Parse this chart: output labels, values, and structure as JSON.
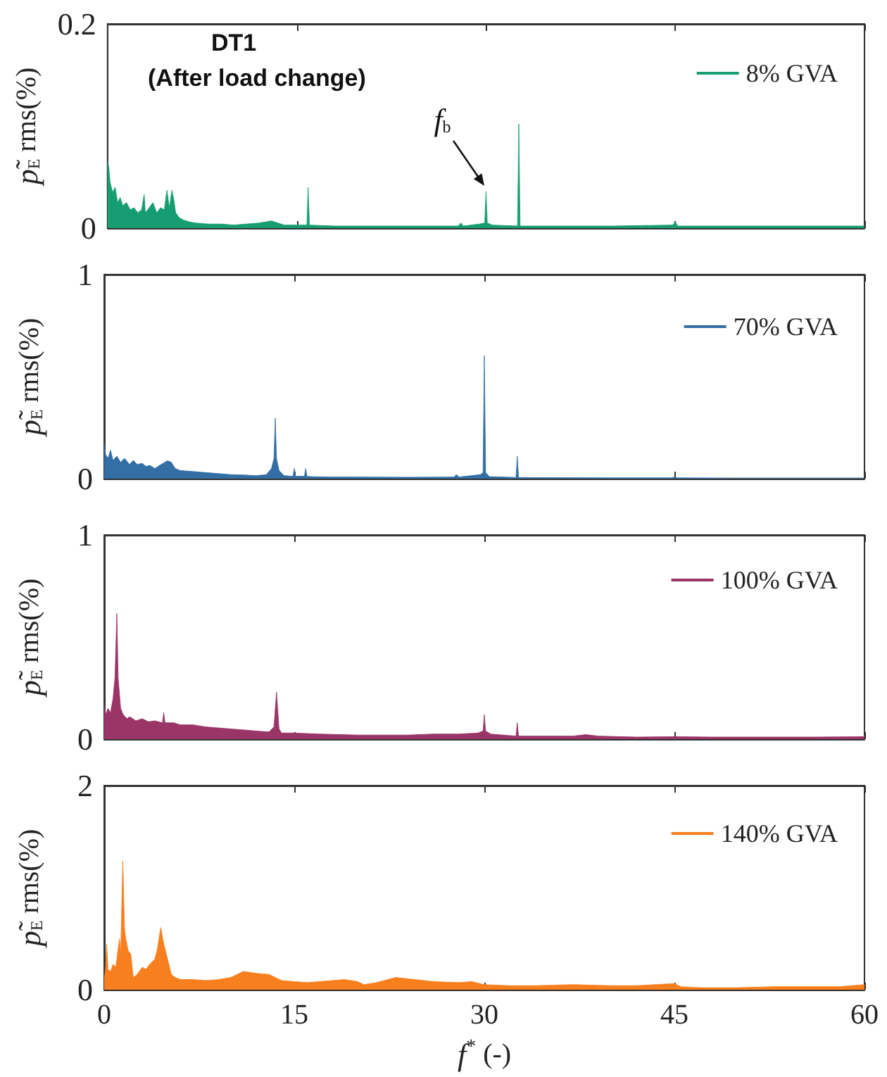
{
  "chart_data": [
    {
      "type": "area",
      "ylabel": "p̃$_{E}$ rms(%)",
      "annotations": [
        "DT1",
        "(After load change)",
        {
          "text": "f$_{b}$",
          "x": 30,
          "y": 0.037
        }
      ],
      "xlim": [
        0,
        60
      ],
      "xticks": [
        0,
        15,
        30,
        45,
        60
      ],
      "ylim": [
        0,
        0.2
      ],
      "yticks": [
        0,
        0.2
      ],
      "tick_labels": "y",
      "legend": "top right",
      "grid": false,
      "series": [
        {
          "name": "8% GVA",
          "color": "#169e72",
          "x": [
            0,
            0.1,
            0.2,
            0.4,
            0.6,
            0.8,
            1.0,
            1.2,
            1.5,
            1.8,
            2.1,
            2.4,
            2.7,
            2.9,
            3.0,
            3.3,
            3.6,
            3.9,
            4.2,
            4.5,
            4.7,
            4.9,
            5.1,
            5.25,
            5.4,
            5.7,
            6.0,
            6.5,
            7,
            8,
            9,
            10,
            11,
            12,
            13,
            13.5,
            14,
            15,
            15.8,
            15.9,
            16.0,
            18,
            20,
            22,
            25,
            27.8,
            28,
            28.2,
            29.5,
            29.9,
            30.0,
            30.1,
            30.5,
            32.5,
            32.6,
            32.7,
            35,
            38,
            40,
            44.8,
            45,
            45.2,
            50,
            55,
            60
          ],
          "values": [
            0.065,
            0.06,
            0.045,
            0.035,
            0.04,
            0.025,
            0.03,
            0.022,
            0.025,
            0.018,
            0.02,
            0.015,
            0.018,
            0.033,
            0.015,
            0.02,
            0.025,
            0.015,
            0.02,
            0.018,
            0.037,
            0.02,
            0.037,
            0.028,
            0.015,
            0.01,
            0.008,
            0.006,
            0.005,
            0.004,
            0.004,
            0.003,
            0.004,
            0.005,
            0.007,
            0.005,
            0.003,
            0.003,
            0.003,
            0.04,
            0.003,
            0.002,
            0.002,
            0.002,
            0.002,
            0.002,
            0.005,
            0.002,
            0.004,
            0.005,
            0.036,
            0.005,
            0.003,
            0.002,
            0.102,
            0.002,
            0.002,
            0.002,
            0.002,
            0.003,
            0.006,
            0.002,
            0.002,
            0.002,
            0.002
          ]
        }
      ]
    },
    {
      "type": "area",
      "ylabel": "p̃$_{E}$ rms(%)",
      "xlim": [
        0,
        60
      ],
      "xticks": [
        0,
        15,
        30,
        45,
        60
      ],
      "ylim": [
        0,
        1
      ],
      "yticks": [
        0,
        1
      ],
      "tick_labels": "y",
      "legend": "top right",
      "grid": false,
      "series": [
        {
          "name": "70% GVA",
          "color": "#336ea4",
          "x": [
            0,
            0.1,
            0.3,
            0.5,
            0.7,
            1,
            1.3,
            1.6,
            2,
            2.3,
            2.6,
            3,
            3.3,
            3.6,
            4,
            4.5,
            5,
            5.3,
            5.6,
            6,
            7,
            8,
            9,
            10,
            11,
            12,
            12.8,
            13.2,
            13.4,
            13.5,
            13.6,
            13.8,
            14.2,
            14.9,
            15.0,
            15.1,
            15.8,
            15.9,
            16.0,
            16.2,
            18,
            20,
            24,
            27.6,
            27.8,
            28,
            29.7,
            29.9,
            30.0,
            30.1,
            30.4,
            32.5,
            32.6,
            32.7,
            35,
            40,
            44.8,
            45,
            45.2,
            50,
            55,
            60
          ],
          "values": [
            0.18,
            0.12,
            0.1,
            0.14,
            0.09,
            0.11,
            0.08,
            0.1,
            0.07,
            0.09,
            0.07,
            0.075,
            0.06,
            0.065,
            0.05,
            0.07,
            0.088,
            0.08,
            0.05,
            0.04,
            0.035,
            0.03,
            0.025,
            0.02,
            0.018,
            0.015,
            0.02,
            0.05,
            0.1,
            0.296,
            0.1,
            0.04,
            0.015,
            0.012,
            0.05,
            0.012,
            0.012,
            0.05,
            0.012,
            0.01,
            0.008,
            0.008,
            0.007,
            0.008,
            0.02,
            0.008,
            0.02,
            0.03,
            0.603,
            0.03,
            0.01,
            0.006,
            0.11,
            0.006,
            0.005,
            0.004,
            0.004,
            0.008,
            0.004,
            0.003,
            0.003,
            0.003
          ]
        }
      ]
    },
    {
      "type": "area",
      "ylabel": "p̃$_{E}$ rms(%)",
      "xlim": [
        0,
        60
      ],
      "xticks": [
        0,
        15,
        30,
        45,
        60
      ],
      "ylim": [
        0,
        1
      ],
      "yticks": [
        0,
        1
      ],
      "tick_labels": "y",
      "legend": "top right",
      "grid": false,
      "series": [
        {
          "name": "100% GVA",
          "color": "#9b3467",
          "x": [
            0,
            0.1,
            0.3,
            0.5,
            0.7,
            0.85,
            1.0,
            1.1,
            1.3,
            1.5,
            1.8,
            2,
            2.5,
            3,
            3.5,
            4,
            4.6,
            4.7,
            4.8,
            5.5,
            6,
            7,
            8,
            9,
            10,
            11,
            12,
            13,
            13.4,
            13.6,
            13.8,
            14,
            15,
            17,
            20,
            22,
            24,
            26,
            28,
            29.5,
            29.9,
            30.0,
            30.1,
            30.5,
            32.5,
            32.6,
            32.7,
            35,
            37,
            38,
            39,
            42,
            45,
            48,
            52,
            56,
            60
          ],
          "values": [
            0.17,
            0.12,
            0.15,
            0.13,
            0.2,
            0.3,
            0.616,
            0.3,
            0.15,
            0.12,
            0.1,
            0.11,
            0.09,
            0.1,
            0.085,
            0.09,
            0.08,
            0.13,
            0.08,
            0.08,
            0.07,
            0.07,
            0.06,
            0.055,
            0.05,
            0.045,
            0.04,
            0.035,
            0.06,
            0.23,
            0.05,
            0.03,
            0.03,
            0.025,
            0.02,
            0.02,
            0.02,
            0.025,
            0.025,
            0.03,
            0.04,
            0.12,
            0.04,
            0.025,
            0.015,
            0.08,
            0.015,
            0.015,
            0.015,
            0.022,
            0.015,
            0.01,
            0.012,
            0.01,
            0.01,
            0.01,
            0.012
          ]
        }
      ]
    },
    {
      "type": "area",
      "ylabel": "p̃$_{E}$ rms(%)",
      "xlabel": "f$^{*}$ (-)",
      "xlim": [
        0,
        60
      ],
      "xticks": [
        0,
        15,
        30,
        45,
        60
      ],
      "ylim": [
        0,
        2
      ],
      "yticks": [
        0,
        2
      ],
      "legend": "top right",
      "grid": false,
      "series": [
        {
          "name": "140% GVA",
          "color": "#f77f1e",
          "x": [
            0,
            0.1,
            0.2,
            0.3,
            0.5,
            0.7,
            0.9,
            1.0,
            1.2,
            1.3,
            1.47,
            1.6,
            1.7,
            1.9,
            2.1,
            2.3,
            2.6,
            3.0,
            3.3,
            3.6,
            4.0,
            4.2,
            4.46,
            4.7,
            5.0,
            5.3,
            5.6,
            6,
            7,
            8,
            9,
            10,
            11,
            12,
            13,
            14,
            15,
            16,
            17,
            18,
            19,
            20,
            20.5,
            21.5,
            23,
            24.5,
            26,
            28,
            29,
            30,
            32,
            34,
            37,
            40,
            42,
            45,
            45.5,
            47,
            50,
            53,
            56,
            58,
            60
          ],
          "values": [
            0.1,
            0.2,
            0.45,
            0.2,
            0.18,
            0.25,
            0.22,
            0.3,
            0.5,
            0.35,
            1.26,
            0.6,
            0.5,
            0.38,
            0.35,
            0.12,
            0.15,
            0.22,
            0.2,
            0.25,
            0.3,
            0.4,
            0.61,
            0.45,
            0.3,
            0.15,
            0.12,
            0.1,
            0.1,
            0.09,
            0.1,
            0.12,
            0.18,
            0.16,
            0.15,
            0.09,
            0.08,
            0.07,
            0.08,
            0.09,
            0.1,
            0.08,
            0.05,
            0.07,
            0.12,
            0.1,
            0.08,
            0.07,
            0.08,
            0.05,
            0.04,
            0.04,
            0.05,
            0.04,
            0.04,
            0.06,
            0.03,
            0.02,
            0.02,
            0.03,
            0.03,
            0.03,
            0.05
          ]
        }
      ]
    }
  ]
}
